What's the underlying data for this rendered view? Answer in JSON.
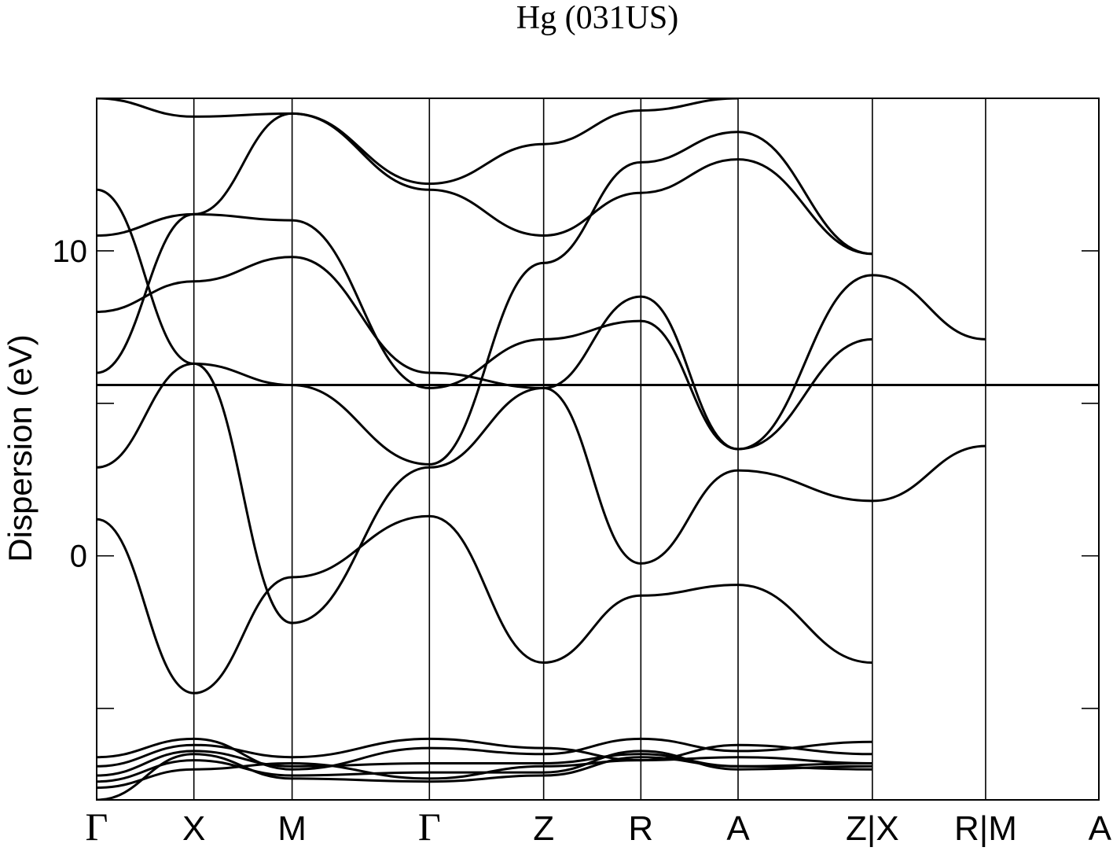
{
  "chart_data": {
    "type": "line",
    "title": "Hg (031US)",
    "ylabel": "Dispersion (eV)",
    "xlabel": "",
    "ylim": [
      -8,
      15
    ],
    "yticks": [
      {
        "value": 10,
        "label": "10"
      },
      {
        "value": 5,
        "label": ""
      },
      {
        "value": 0,
        "label": "0"
      },
      {
        "value": -5,
        "label": ""
      }
    ],
    "kpath": [
      {
        "label": "Γ",
        "pos": 0.0
      },
      {
        "label": "X",
        "pos": 0.097
      },
      {
        "label": "M",
        "pos": 0.195
      },
      {
        "label": "Γ",
        "pos": 0.332
      },
      {
        "label": "Z",
        "pos": 0.446
      },
      {
        "label": "R",
        "pos": 0.543
      },
      {
        "label": "A",
        "pos": 0.64
      },
      {
        "label": "Z|X",
        "pos": 0.774
      },
      {
        "label": "R|M",
        "pos": 0.887
      },
      {
        "label": "A",
        "pos": 1.0
      }
    ],
    "series": [
      {
        "y": [
          1.2,
          -4.5,
          -0.7,
          1.3,
          -3.5,
          -1.3,
          -0.95,
          -3.5
        ]
      },
      {
        "y": [
          2.9,
          6.3,
          -2.2,
          2.9,
          5.5,
          -0.25,
          2.8,
          1.8,
          3.6
        ]
      },
      {
        "y": [
          -6.6,
          -6.0,
          -7.0,
          -6.3,
          -6.5,
          -6.0,
          -6.4,
          -6.1
        ]
      },
      {
        "y": [
          -6.9,
          -6.2,
          -6.6,
          -6.0,
          -6.3,
          -6.7,
          -6.2,
          -6.5
        ]
      },
      {
        "y": [
          -7.2,
          -6.4,
          -6.9,
          -6.8,
          -6.8,
          -6.5,
          -6.9,
          -6.8
        ]
      },
      {
        "y": [
          -7.4,
          -6.7,
          -7.2,
          -7.1,
          -7.1,
          -6.4,
          -7.0,
          -6.9
        ]
      },
      {
        "y": [
          -7.6,
          -7.0,
          -6.8,
          -7.3,
          -6.9,
          -6.7,
          -6.6,
          -6.8
        ]
      },
      {
        "y": [
          -8.0,
          -6.5,
          -7.3,
          -7.4,
          -7.2,
          -6.6,
          -6.9,
          -7.0
        ]
      },
      {
        "y": [
          8.0,
          9.0,
          9.8,
          6.0,
          5.5,
          8.5,
          3.5,
          9.2,
          7.1
        ]
      },
      {
        "y": [
          6.0,
          11.2,
          11.0,
          5.5,
          7.1,
          7.7,
          3.5,
          7.1
        ]
      },
      {
        "y": [
          10.5,
          11.2,
          14.5,
          12.0,
          10.5,
          11.9,
          13.0,
          9.9
        ]
      },
      {
        "y": [
          12.0,
          6.3,
          5.6,
          3.0,
          9.6,
          12.9,
          13.9,
          9.9
        ]
      },
      {
        "y": [
          15.0,
          14.4,
          14.5,
          12.2,
          13.5,
          14.6,
          15.0
        ]
      },
      {
        "y": [
          5.6,
          5.6,
          5.6,
          5.6,
          5.6,
          5.6,
          5.6,
          5.6,
          5.6,
          5.6
        ]
      }
    ]
  }
}
